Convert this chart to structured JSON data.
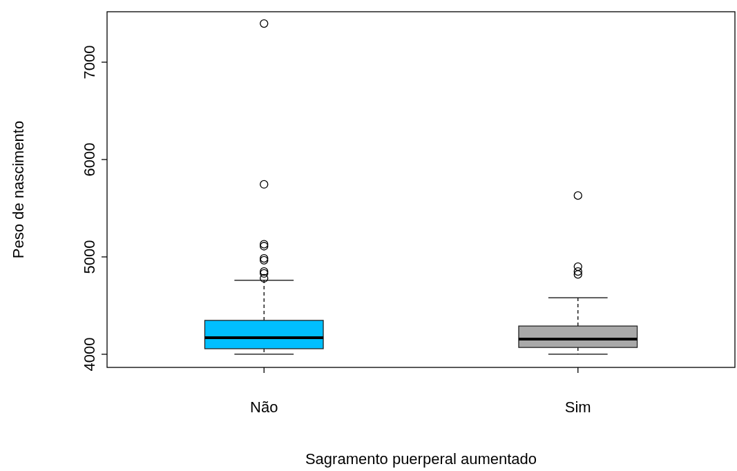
{
  "chart_data": {
    "type": "box",
    "xlabel": "Sagramento puerperal aumentado",
    "ylabel": "Peso de nascimento",
    "categories": [
      "Não",
      "Sim"
    ],
    "colors": [
      "#00bfff",
      "#a9a9a9"
    ],
    "boxes": [
      {
        "low": 4000,
        "q1": 4057,
        "median": 4170,
        "q3": 4348,
        "high": 4760,
        "outliers": [
          7397,
          5745,
          5130,
          5110,
          4985,
          4965,
          4850,
          4830,
          4780
        ]
      },
      {
        "low": 4000,
        "q1": 4070,
        "median": 4155,
        "q3": 4290,
        "high": 4580,
        "outliers": [
          5630,
          4900,
          4850,
          4820
        ]
      }
    ],
    "ylim": [
      3865,
      7518
    ],
    "yticks": [
      4000,
      5000,
      6000,
      7000
    ],
    "grid": false
  }
}
